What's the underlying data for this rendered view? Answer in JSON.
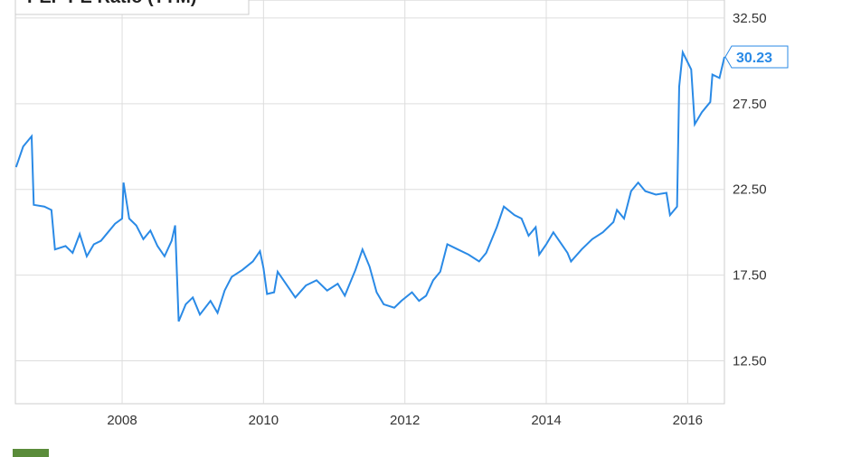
{
  "chart_data": {
    "type": "line",
    "title": "PEP PE Ratio (TTM)",
    "xlim": [
      2006.49,
      2016.52
    ],
    "ylim": [
      10,
      33.55
    ],
    "xticks": [
      2008,
      2010,
      2012,
      2014,
      2016
    ],
    "yticks": [
      {
        "value": 12.5,
        "label": "12.50"
      },
      {
        "value": 17.5,
        "label": "17.50"
      },
      {
        "value": 22.5,
        "label": "22.50"
      },
      {
        "value": 27.5,
        "label": "27.50"
      },
      {
        "value": 32.5,
        "label": "32.50"
      }
    ],
    "grid": true,
    "series": [
      {
        "name": "PEP PE Ratio (TTM)",
        "color": "#2a8ae6",
        "x": [
          2006.5,
          2006.6,
          2006.72,
          2006.75,
          2006.9,
          2007.0,
          2007.05,
          2007.2,
          2007.3,
          2007.4,
          2007.5,
          2007.6,
          2007.7,
          2007.8,
          2007.9,
          2008.0,
          2008.02,
          2008.1,
          2008.2,
          2008.3,
          2008.4,
          2008.5,
          2008.6,
          2008.7,
          2008.75,
          2008.8,
          2008.9,
          2009.0,
          2009.1,
          2009.25,
          2009.35,
          2009.45,
          2009.55,
          2009.7,
          2009.85,
          2009.95,
          2010.0,
          2010.05,
          2010.15,
          2010.2,
          2010.35,
          2010.45,
          2010.6,
          2010.75,
          2010.9,
          2011.05,
          2011.15,
          2011.3,
          2011.4,
          2011.5,
          2011.6,
          2011.7,
          2011.85,
          2011.95,
          2012.1,
          2012.2,
          2012.3,
          2012.4,
          2012.5,
          2012.6,
          2012.75,
          2012.9,
          2013.05,
          2013.15,
          2013.3,
          2013.4,
          2013.55,
          2013.65,
          2013.75,
          2013.85,
          2013.9,
          2014.0,
          2014.1,
          2014.2,
          2014.3,
          2014.35,
          2014.5,
          2014.65,
          2014.8,
          2014.95,
          2015.0,
          2015.1,
          2015.2,
          2015.3,
          2015.4,
          2015.55,
          2015.7,
          2015.75,
          2015.85,
          2015.88,
          2015.93,
          2016.05,
          2016.1,
          2016.2,
          2016.32,
          2016.35,
          2016.45,
          2016.52
        ],
        "values": [
          23.8,
          25.0,
          25.6,
          21.6,
          21.5,
          21.3,
          19.0,
          19.2,
          18.8,
          19.9,
          18.6,
          19.3,
          19.5,
          20.0,
          20.5,
          20.8,
          22.9,
          20.8,
          20.4,
          19.6,
          20.1,
          19.2,
          18.6,
          19.5,
          20.4,
          14.8,
          15.8,
          16.2,
          15.2,
          16.0,
          15.3,
          16.6,
          17.4,
          17.8,
          18.3,
          18.9,
          17.9,
          16.4,
          16.5,
          17.7,
          16.8,
          16.2,
          16.9,
          17.2,
          16.6,
          17.0,
          16.3,
          17.8,
          19.0,
          18.0,
          16.5,
          15.8,
          15.6,
          16.0,
          16.5,
          16.0,
          16.3,
          17.2,
          17.7,
          19.3,
          19.0,
          18.7,
          18.3,
          18.8,
          20.3,
          21.5,
          21.0,
          20.8,
          19.8,
          20.3,
          18.7,
          19.3,
          20.0,
          19.4,
          18.8,
          18.3,
          19.0,
          19.6,
          20.0,
          20.6,
          21.3,
          20.8,
          22.4,
          22.9,
          22.4,
          22.2,
          22.3,
          21.0,
          21.5,
          28.5,
          30.5,
          29.5,
          26.3,
          27.0,
          27.6,
          29.2,
          29.0,
          30.23
        ]
      }
    ]
  }
}
